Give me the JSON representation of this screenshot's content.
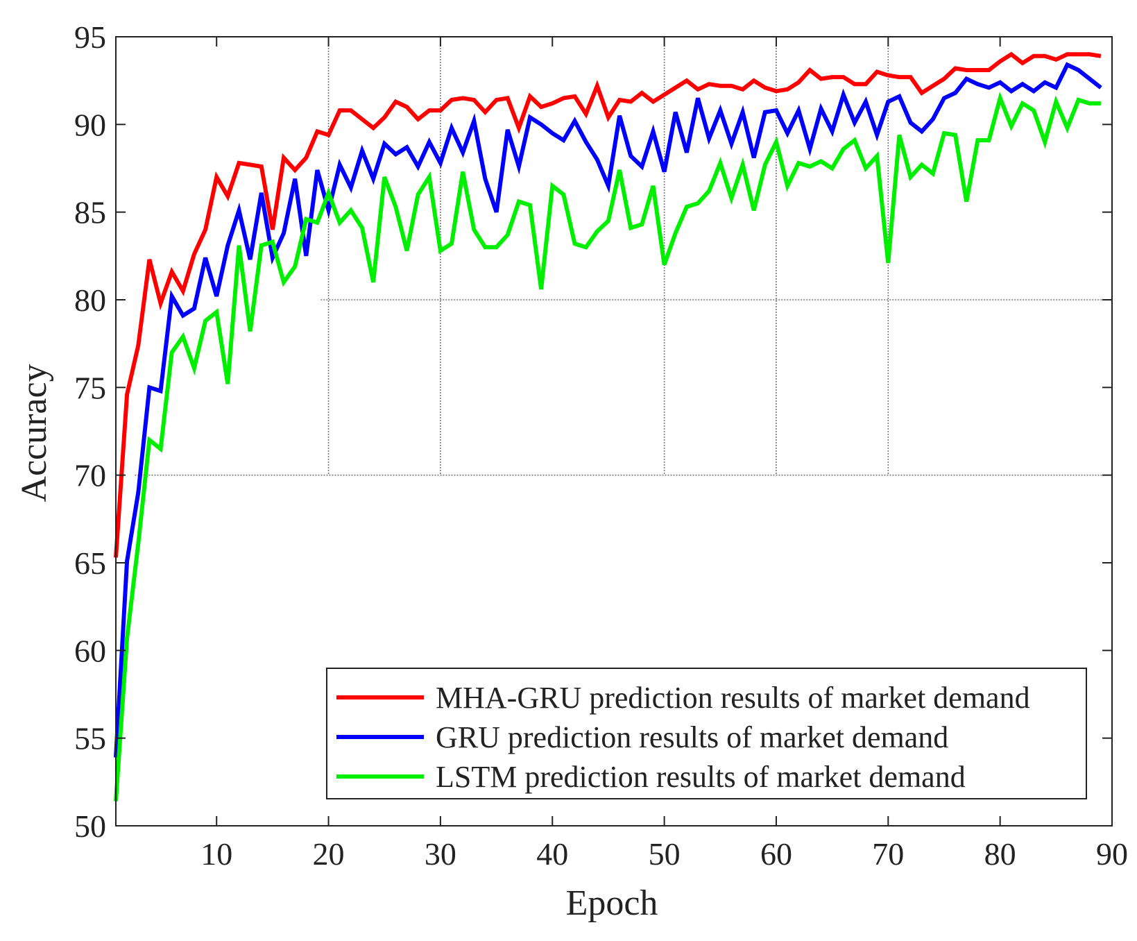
{
  "chart_data": {
    "type": "line",
    "title": "",
    "xlabel": "Epoch",
    "ylabel": "Accuracy",
    "xlim": [
      1,
      90
    ],
    "ylim": [
      50,
      95
    ],
    "xticks": [
      10,
      20,
      30,
      40,
      50,
      60,
      70,
      80,
      90
    ],
    "yticks": [
      50,
      55,
      60,
      65,
      70,
      75,
      80,
      85,
      90,
      95
    ],
    "grid": "partial (dotted lines at x=20,30,50,60,70 above y=70; y=70,80 across; y=95 stub)",
    "legend_position": "bottom-right",
    "x": [
      1,
      2,
      3,
      4,
      5,
      6,
      7,
      8,
      9,
      10,
      11,
      12,
      13,
      14,
      15,
      16,
      17,
      18,
      19,
      20,
      21,
      22,
      23,
      24,
      25,
      26,
      27,
      28,
      29,
      30,
      31,
      32,
      33,
      34,
      35,
      36,
      37,
      38,
      39,
      40,
      41,
      42,
      43,
      44,
      45,
      46,
      47,
      48,
      49,
      50,
      51,
      52,
      53,
      54,
      55,
      56,
      57,
      58,
      59,
      60,
      61,
      62,
      63,
      64,
      65,
      66,
      67,
      68,
      69,
      70,
      71,
      72,
      73,
      74,
      75,
      76,
      77,
      78,
      79,
      80,
      81,
      82,
      83,
      84,
      85,
      86,
      87,
      88,
      89
    ],
    "series": [
      {
        "name": "MHA-GRU prediction results of market demand",
        "color": "#ff0000",
        "values": [
          65.3,
          74.6,
          77.4,
          82.3,
          79.8,
          81.6,
          80.5,
          82.6,
          84.0,
          87.0,
          85.9,
          87.8,
          87.7,
          87.6,
          84.0,
          88.1,
          87.4,
          88.1,
          89.6,
          89.4,
          90.8,
          90.8,
          90.3,
          89.8,
          90.4,
          91.3,
          91.0,
          90.3,
          90.8,
          90.8,
          91.4,
          91.5,
          91.4,
          90.7,
          91.4,
          91.5,
          89.8,
          91.6,
          91.0,
          91.2,
          91.5,
          91.6,
          90.6,
          92.2,
          90.4,
          91.4,
          91.3,
          91.8,
          91.3,
          91.7,
          92.1,
          92.5,
          92.0,
          92.3,
          92.2,
          92.2,
          92.0,
          92.5,
          92.1,
          91.9,
          92.0,
          92.4,
          93.1,
          92.6,
          92.7,
          92.7,
          92.3,
          92.3,
          93.0,
          92.8,
          92.7,
          92.7,
          91.8,
          92.2,
          92.6,
          93.2,
          93.1,
          93.1,
          93.1,
          93.6,
          94.0,
          93.5,
          93.9,
          93.9,
          93.7,
          94.0,
          94.0,
          94.0,
          93.9
        ]
      },
      {
        "name": "GRU prediction results of market demand",
        "color": "#0000ff",
        "values": [
          53.9,
          65.1,
          69.0,
          75.0,
          74.8,
          80.2,
          79.1,
          79.5,
          82.4,
          80.2,
          83.1,
          85.1,
          82.3,
          86.1,
          82.4,
          83.8,
          86.9,
          82.5,
          87.4,
          85.1,
          87.7,
          86.4,
          88.5,
          86.9,
          88.9,
          88.3,
          88.7,
          87.6,
          89.0,
          87.8,
          89.8,
          88.4,
          90.2,
          86.9,
          85.0,
          89.7,
          87.6,
          90.4,
          90.0,
          89.5,
          89.1,
          90.2,
          89.0,
          88.0,
          86.5,
          90.5,
          88.2,
          87.6,
          89.6,
          87.3,
          90.7,
          88.4,
          91.5,
          89.2,
          90.8,
          88.9,
          90.7,
          88.1,
          90.7,
          90.8,
          89.5,
          90.8,
          88.6,
          90.9,
          89.6,
          91.7,
          90.1,
          91.3,
          89.4,
          91.3,
          91.6,
          90.1,
          89.6,
          90.3,
          91.5,
          91.8,
          92.6,
          92.3,
          92.1,
          92.4,
          91.9,
          92.3,
          91.9,
          92.4,
          92.1,
          93.4,
          93.1,
          92.6,
          92.1
        ]
      },
      {
        "name": "LSTM prediction results of market demand",
        "color": "#00ee00",
        "values": [
          51.4,
          60.7,
          66.1,
          72.0,
          71.5,
          77.0,
          77.9,
          76.1,
          78.8,
          79.3,
          75.2,
          83.1,
          78.2,
          83.1,
          83.3,
          81.0,
          81.9,
          84.6,
          84.4,
          86.1,
          84.4,
          85.1,
          84.1,
          81.0,
          87.0,
          85.3,
          82.8,
          86.0,
          87.0,
          82.8,
          83.2,
          87.3,
          84.0,
          83.0,
          83.0,
          83.7,
          85.6,
          85.4,
          80.6,
          86.5,
          86.0,
          83.2,
          83.0,
          83.9,
          84.5,
          87.4,
          84.1,
          84.3,
          86.5,
          82.0,
          83.8,
          85.3,
          85.5,
          86.2,
          87.8,
          85.8,
          87.7,
          85.1,
          87.7,
          89.0,
          86.5,
          87.8,
          87.6,
          87.9,
          87.5,
          88.6,
          89.1,
          87.5,
          88.2,
          82.1,
          89.4,
          87.0,
          87.7,
          87.2,
          89.5,
          89.4,
          85.6,
          89.1,
          89.1,
          91.5,
          89.9,
          91.2,
          90.8,
          89.0,
          91.3,
          89.8,
          91.4,
          91.2,
          91.2
        ]
      }
    ]
  }
}
